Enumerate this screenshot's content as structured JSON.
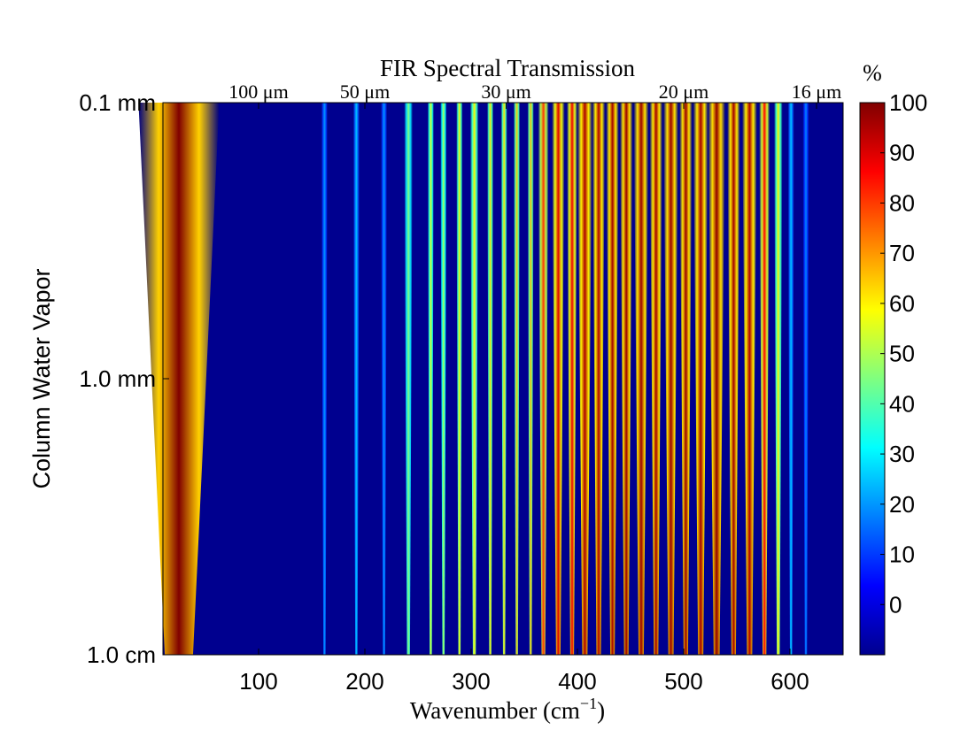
{
  "chart_data": {
    "type": "heatmap",
    "title": "FIR Spectral Transmission",
    "xlabel": "Wavenumber (cm",
    "xlabel_sup": "−1",
    "xlabel_close": ")",
    "ylabel": "Column Water Vapor",
    "colorbar_label": "%",
    "xlim": [
      10,
      650
    ],
    "x_ticks": [
      100,
      200,
      300,
      400,
      500,
      600
    ],
    "x_tick_labels": [
      "100",
      "200",
      "300",
      "400",
      "500",
      "600"
    ],
    "top_axis_labels": [
      {
        "wavenumber": 100,
        "label": "100 μm"
      },
      {
        "wavenumber": 200,
        "label": "50 μm"
      },
      {
        "wavenumber": 333,
        "label": "30 μm"
      },
      {
        "wavenumber": 500,
        "label": "20 μm"
      },
      {
        "wavenumber": 625,
        "label": "16 μm"
      }
    ],
    "y_scale": "log",
    "ylim_mm": [
      0.1,
      10
    ],
    "y_ticks": [
      {
        "value_mm": 0.1,
        "label": "0.1 mm"
      },
      {
        "value_mm": 1.0,
        "label": "1.0 mm"
      },
      {
        "value_mm": 10,
        "label": "1.0 cm"
      }
    ],
    "colorbar": {
      "range": [
        -10,
        100
      ],
      "ticks": [
        0,
        10,
        20,
        30,
        40,
        50,
        60,
        70,
        80,
        90,
        100
      ],
      "tick_labels": [
        "0",
        "10",
        "20",
        "30",
        "40",
        "50",
        "60",
        "70",
        "80",
        "90",
        "100"
      ],
      "colormap": "jet"
    },
    "transmission_windows": [
      {
        "center": 25,
        "width": 38,
        "peak": 100
      },
      {
        "center": 162,
        "width": 3,
        "peak": 20
      },
      {
        "center": 192,
        "width": 3,
        "peak": 25
      },
      {
        "center": 218,
        "width": 3,
        "peak": 20
      },
      {
        "center": 241,
        "width": 4,
        "peak": 45
      },
      {
        "center": 262,
        "width": 3,
        "peak": 55
      },
      {
        "center": 274,
        "width": 3,
        "peak": 50
      },
      {
        "center": 289,
        "width": 3,
        "peak": 60
      },
      {
        "center": 303,
        "width": 4,
        "peak": 60
      },
      {
        "center": 318,
        "width": 3,
        "peak": 62
      },
      {
        "center": 331,
        "width": 3,
        "peak": 62
      },
      {
        "center": 343,
        "width": 3,
        "peak": 65
      },
      {
        "center": 356,
        "width": 3,
        "peak": 66
      },
      {
        "center": 368,
        "width": 5,
        "peak": 80
      },
      {
        "center": 382,
        "width": 6,
        "peak": 90
      },
      {
        "center": 395,
        "width": 5,
        "peak": 88
      },
      {
        "center": 407,
        "width": 7,
        "peak": 95
      },
      {
        "center": 420,
        "width": 6,
        "peak": 95
      },
      {
        "center": 433,
        "width": 6,
        "peak": 96
      },
      {
        "center": 446,
        "width": 6,
        "peak": 97
      },
      {
        "center": 460,
        "width": 7,
        "peak": 97
      },
      {
        "center": 474,
        "width": 6,
        "peak": 96
      },
      {
        "center": 488,
        "width": 7,
        "peak": 97
      },
      {
        "center": 502,
        "width": 6,
        "peak": 97
      },
      {
        "center": 516,
        "width": 7,
        "peak": 96
      },
      {
        "center": 531,
        "width": 8,
        "peak": 98
      },
      {
        "center": 547,
        "width": 6,
        "peak": 96
      },
      {
        "center": 562,
        "width": 7,
        "peak": 95
      },
      {
        "center": 576,
        "width": 5,
        "peak": 85
      },
      {
        "center": 589,
        "width": 4,
        "peak": 60
      },
      {
        "center": 601,
        "width": 3,
        "peak": 25
      },
      {
        "center": 615,
        "width": 3,
        "peak": 18
      }
    ],
    "grid": false,
    "legend": "none"
  }
}
